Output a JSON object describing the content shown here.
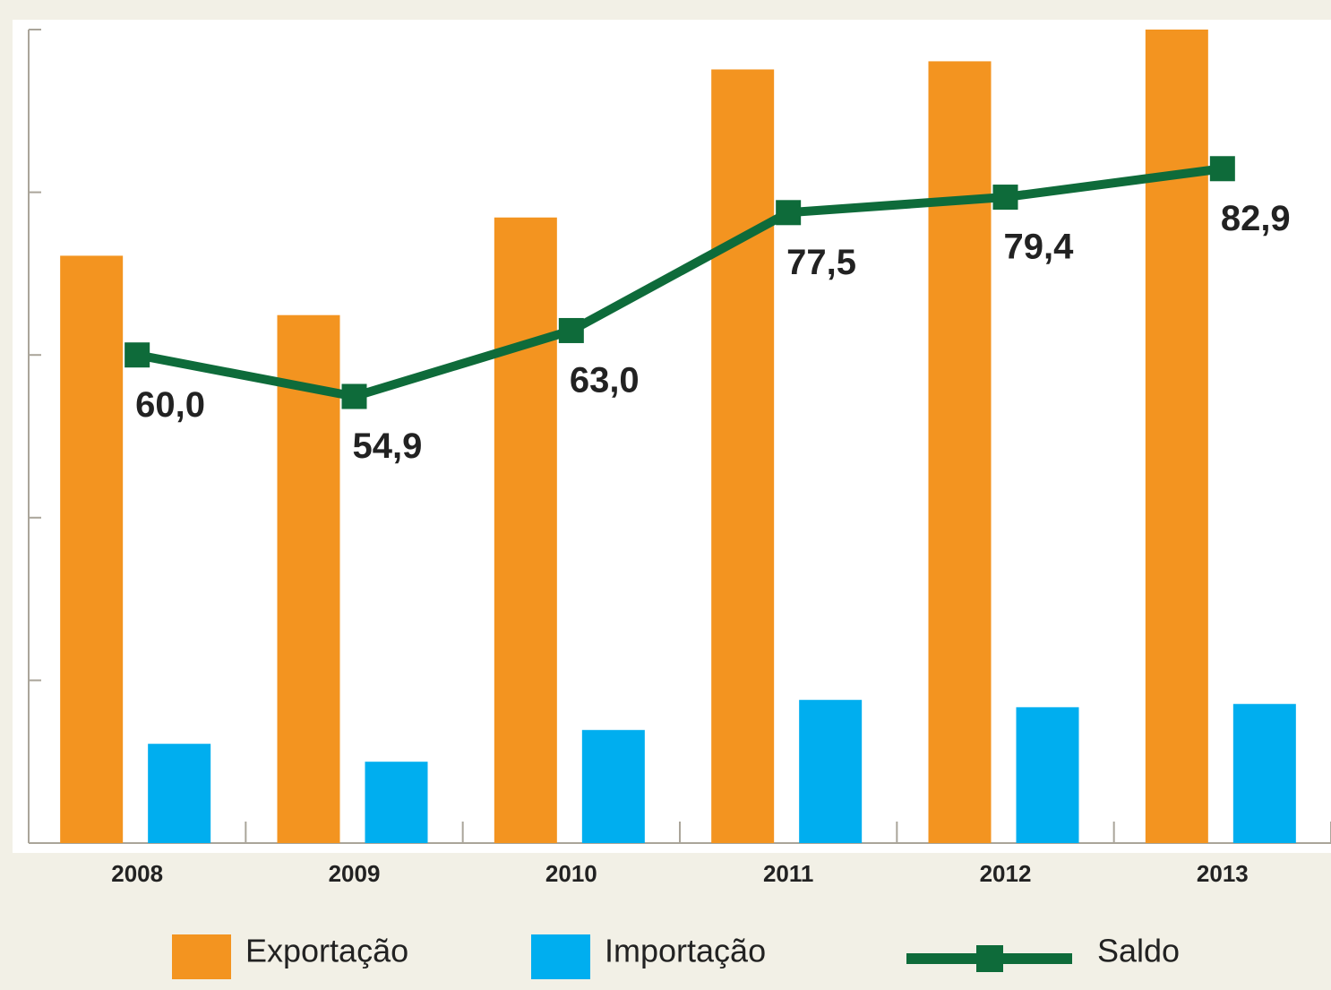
{
  "chart_data": {
    "type": "bar",
    "categories": [
      "2008",
      "2009",
      "2010",
      "2011",
      "2012",
      "2013"
    ],
    "series": [
      {
        "name": "Exportação",
        "color": "#f39420",
        "values": [
          72.2,
          64.9,
          76.9,
          95.1,
          96.1,
          100
        ]
      },
      {
        "name": "Importação",
        "color": "#00aeef",
        "values": [
          12.2,
          10,
          13.9,
          17.6,
          16.7,
          17.1
        ]
      },
      {
        "name": "Saldo",
        "type": "line",
        "color": "#0e6b3a",
        "values": [
          60.0,
          54.9,
          63.0,
          77.5,
          79.4,
          82.9
        ],
        "value_labels": [
          "60,0",
          "54,9",
          "63,0",
          "77,5",
          "79,4",
          "82,9"
        ]
      }
    ],
    "ylim": [
      0,
      100
    ],
    "yticks": [
      0,
      20,
      40,
      60,
      80,
      100
    ]
  }
}
